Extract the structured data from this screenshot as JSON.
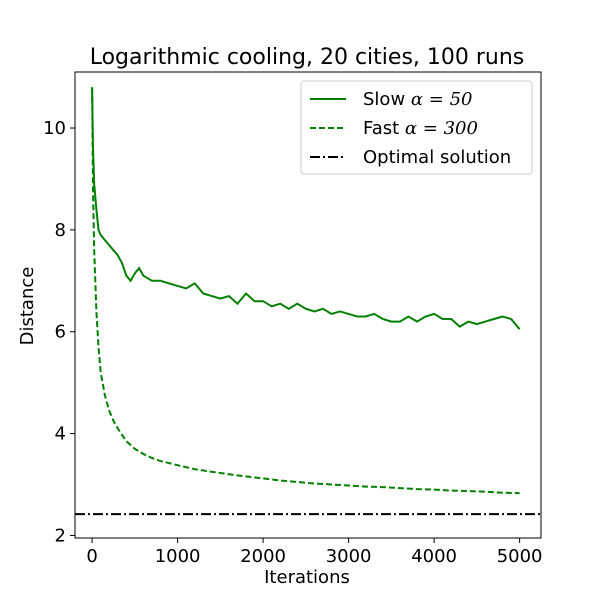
{
  "chart_data": {
    "type": "line",
    "title": "Logarithmic cooling, 20 cities, 100 runs",
    "xlabel": "Iterations",
    "ylabel": "Distance",
    "xlim": [
      -200,
      5250
    ],
    "ylim": [
      1.95,
      11.1
    ],
    "x_ticks": [
      0,
      1000,
      2000,
      3000,
      4000,
      5000
    ],
    "y_ticks": [
      2,
      4,
      6,
      8,
      10
    ],
    "grid": false,
    "legend_position": "top-right",
    "series": [
      {
        "name_prefix": "Slow",
        "name_math": "α = 50",
        "color": "#008000",
        "linestyle": "solid",
        "x": [
          0,
          10,
          25,
          50,
          75,
          100,
          150,
          200,
          250,
          300,
          350,
          400,
          450,
          500,
          550,
          600,
          700,
          800,
          900,
          1000,
          1100,
          1200,
          1300,
          1400,
          1500,
          1600,
          1700,
          1800,
          1900,
          2000,
          2100,
          2200,
          2300,
          2400,
          2500,
          2600,
          2700,
          2800,
          2900,
          3000,
          3100,
          3200,
          3300,
          3400,
          3500,
          3600,
          3700,
          3800,
          3900,
          4000,
          4100,
          4200,
          4300,
          4400,
          4500,
          4600,
          4700,
          4800,
          4900,
          5000
        ],
        "y": [
          10.8,
          9.6,
          8.9,
          8.4,
          8.0,
          7.9,
          7.8,
          7.7,
          7.6,
          7.5,
          7.35,
          7.1,
          7.0,
          7.15,
          7.25,
          7.1,
          7.0,
          7.0,
          6.95,
          6.9,
          6.85,
          6.95,
          6.75,
          6.7,
          6.65,
          6.7,
          6.55,
          6.75,
          6.6,
          6.6,
          6.5,
          6.55,
          6.45,
          6.55,
          6.45,
          6.4,
          6.45,
          6.35,
          6.4,
          6.35,
          6.3,
          6.3,
          6.35,
          6.25,
          6.2,
          6.2,
          6.3,
          6.2,
          6.3,
          6.35,
          6.25,
          6.25,
          6.1,
          6.2,
          6.15,
          6.2,
          6.25,
          6.3,
          6.25,
          6.05
        ]
      },
      {
        "name_prefix": "Fast",
        "name_math": "α = 300",
        "color": "#008000",
        "linestyle": "dashed",
        "x": [
          0,
          10,
          25,
          50,
          75,
          100,
          150,
          200,
          250,
          300,
          400,
          500,
          600,
          700,
          800,
          900,
          1000,
          1200,
          1400,
          1600,
          1800,
          2000,
          2200,
          2400,
          2600,
          2800,
          3000,
          3200,
          3400,
          3600,
          3800,
          4000,
          4200,
          4400,
          4600,
          4800,
          5000
        ],
        "y": [
          10.8,
          8.8,
          7.6,
          6.4,
          5.7,
          5.2,
          4.75,
          4.45,
          4.25,
          4.1,
          3.85,
          3.7,
          3.6,
          3.52,
          3.46,
          3.42,
          3.38,
          3.3,
          3.25,
          3.2,
          3.16,
          3.12,
          3.08,
          3.05,
          3.02,
          3.0,
          2.98,
          2.96,
          2.95,
          2.93,
          2.91,
          2.9,
          2.88,
          2.87,
          2.86,
          2.84,
          2.83
        ]
      },
      {
        "name_prefix": "Optimal solution",
        "name_math": "",
        "color": "#000000",
        "linestyle": "dashdot",
        "x": [
          -200,
          5250
        ],
        "y": [
          2.42,
          2.42
        ]
      }
    ]
  }
}
